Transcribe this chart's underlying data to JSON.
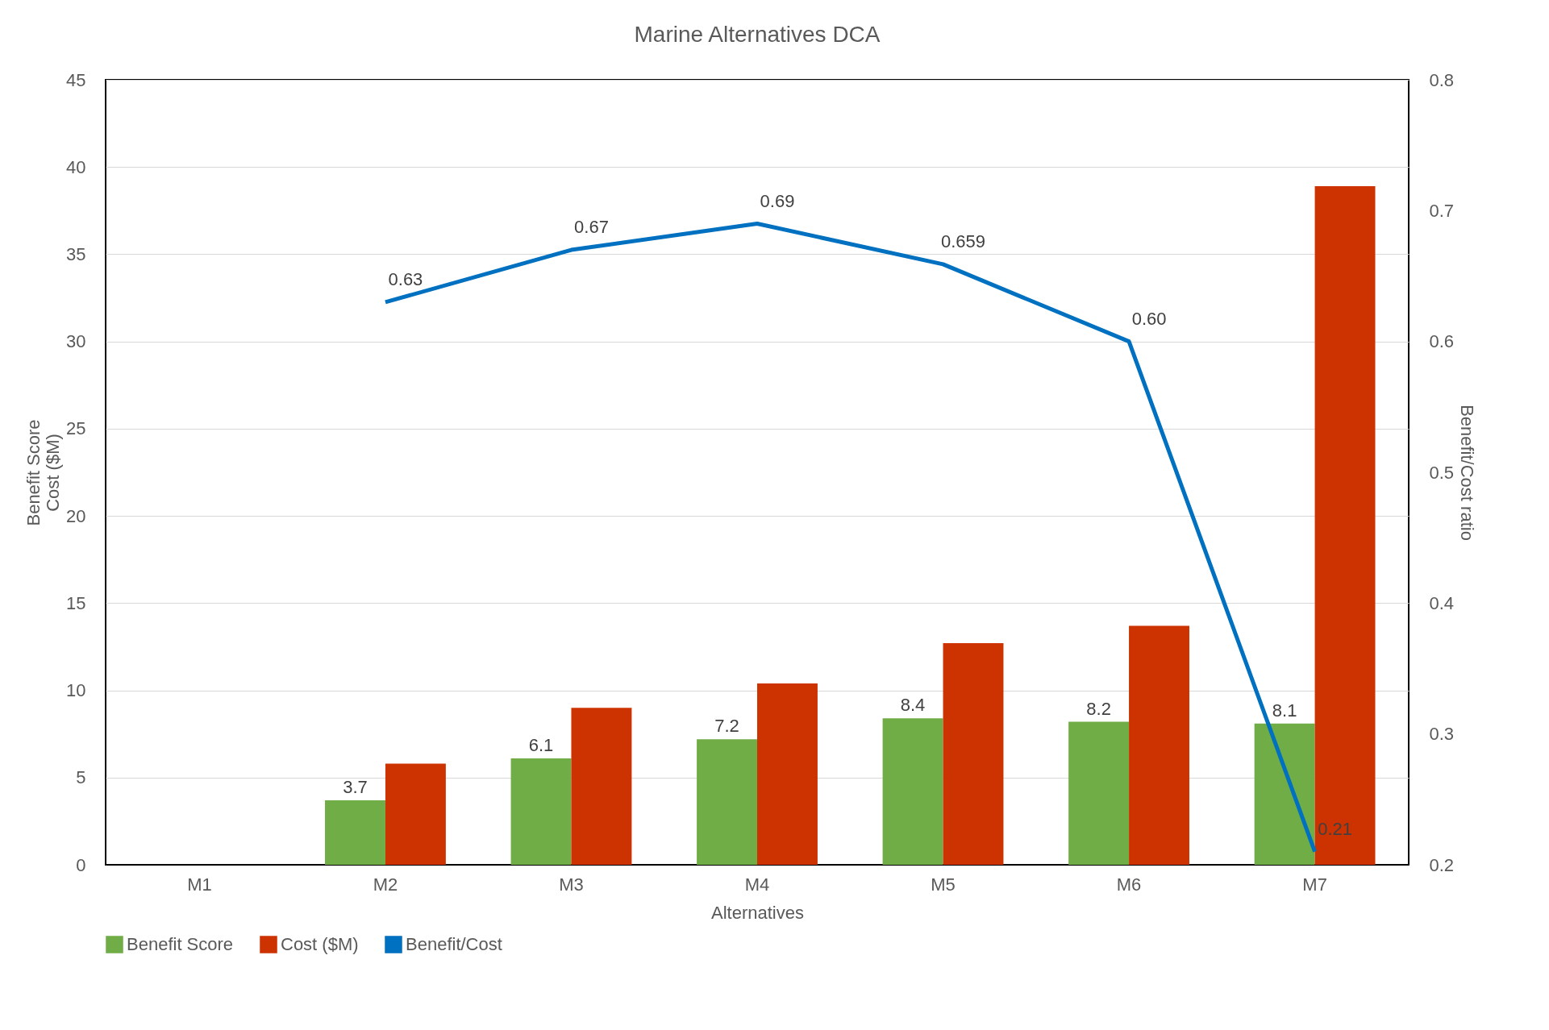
{
  "chart_data": {
    "type": "bar",
    "title": "Marine Alternatives DCA",
    "xlabel": "Alternatives",
    "ylabel": "Benefit Score\nCost ($M)",
    "y2label": "Benefit/Cost ratio",
    "categories": [
      "M1",
      "M2",
      "M3",
      "M4",
      "M5",
      "M6",
      "M7"
    ],
    "series": [
      {
        "name": "Benefit Score",
        "color": "#70ad47",
        "values": [
          null,
          3.7,
          6.1,
          7.2,
          8.4,
          8.2,
          8.1
        ],
        "value_labels": [
          null,
          "3.7",
          "6.1",
          "7.2",
          "8.4",
          "8.2",
          "8.1"
        ]
      },
      {
        "name": "Cost ($M)",
        "color": "#cc3300",
        "values": [
          null,
          5.8,
          9.0,
          10.4,
          12.7,
          13.7,
          38.9
        ]
      },
      {
        "name": "Benefit/Cost",
        "type": "line",
        "axis": "y2",
        "color": "#0070c0",
        "values": [
          null,
          0.63,
          0.67,
          0.69,
          0.659,
          0.6,
          0.21
        ],
        "value_labels": [
          null,
          "0.63",
          "0.67",
          "0.69",
          "0.659",
          "0.60",
          "0.21"
        ]
      }
    ],
    "ylim": [
      0,
      45
    ],
    "yticks": [
      0,
      5,
      10,
      15,
      20,
      25,
      30,
      35,
      40,
      45
    ],
    "y2lim": [
      0.2,
      0.8
    ],
    "y2ticks": [
      0.2,
      0.3,
      0.4,
      0.5,
      0.6,
      0.7,
      0.8
    ],
    "grid": "y",
    "legend": "bottom"
  }
}
